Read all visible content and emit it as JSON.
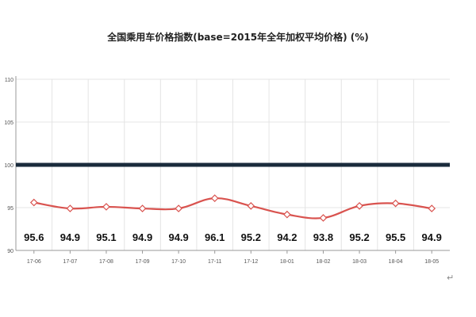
{
  "chart_data": {
    "type": "line",
    "title": "全国乘用车价格指数(base=2015年全年加权平均价格) (%)",
    "categories": [
      "17-06",
      "17-07",
      "17-08",
      "17-09",
      "17-10",
      "17-11",
      "17-12",
      "18-01",
      "18-02",
      "18-03",
      "18-04",
      "18-05"
    ],
    "series": [
      {
        "values": [
          95.6,
          94.9,
          95.1,
          94.9,
          94.9,
          96.1,
          95.2,
          94.2,
          93.8,
          95.2,
          95.5,
          94.9
        ]
      }
    ],
    "reference_line": 100,
    "ylim": [
      90,
      110
    ],
    "yticks": [
      90,
      95,
      100,
      105,
      110
    ],
    "grid": true,
    "legend": "none",
    "colors": {
      "line": "#d9534f",
      "marker_fill": "#ffffff",
      "reference": "#1a2b3c",
      "grid": "#e4e4e4",
      "axis": "#999999"
    }
  },
  "footer_mark": "↵"
}
